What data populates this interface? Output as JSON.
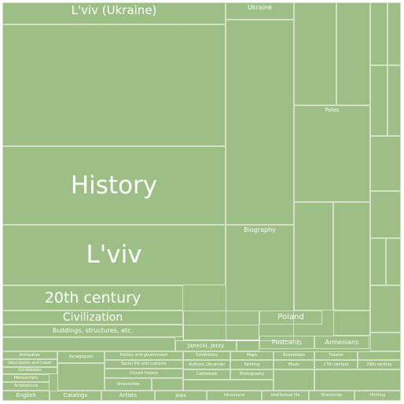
{
  "chart_data": {
    "type": "treemap",
    "fill_color": "#9dbe84",
    "border_color": "#ffffff",
    "tiles": [
      {
        "label": "L'viv (Ukraine)"
      },
      {
        "label": "History"
      },
      {
        "label": "L'viv"
      },
      {
        "label": "20th century"
      },
      {
        "label": "Ukraine"
      },
      {
        "label": "Biography"
      },
      {
        "label": "Poles"
      },
      {
        "label": "Civilization"
      },
      {
        "label": "Buildings, structures, etc."
      },
      {
        "label": "Poland"
      },
      {
        "label": "Postcards"
      },
      {
        "label": "Armenians"
      },
      {
        "label": "Janecki, Jerzy"
      },
      {
        "label": "English"
      },
      {
        "label": "Catalogs"
      },
      {
        "label": "Artists"
      },
      {
        "label": "Jews"
      },
      {
        "label": "Politics and government"
      },
      {
        "label": "Social life and customs"
      },
      {
        "label": "Church history"
      },
      {
        "label": "Antiquities"
      },
      {
        "label": "Description and travel"
      },
      {
        "label": "Guidebooks"
      },
      {
        "label": "Synagogues"
      },
      {
        "label": "17th century"
      },
      {
        "label": "19th century"
      },
      {
        "label": "Manuscripts"
      },
      {
        "label": "Architecture"
      },
      {
        "label": "Universities"
      },
      {
        "label": "Exhibitions"
      },
      {
        "label": "Maps"
      },
      {
        "label": "Ukrainians"
      },
      {
        "label": "Intellectual life"
      },
      {
        "label": "Authors, Ukrainian"
      },
      {
        "label": "Painting"
      },
      {
        "label": "Bookplates"
      },
      {
        "label": "Music"
      },
      {
        "label": "Theater"
      },
      {
        "label": "Directories"
      },
      {
        "label": "Printing"
      },
      {
        "label": "Cathedrals"
      },
      {
        "label": "Photography"
      }
    ]
  }
}
